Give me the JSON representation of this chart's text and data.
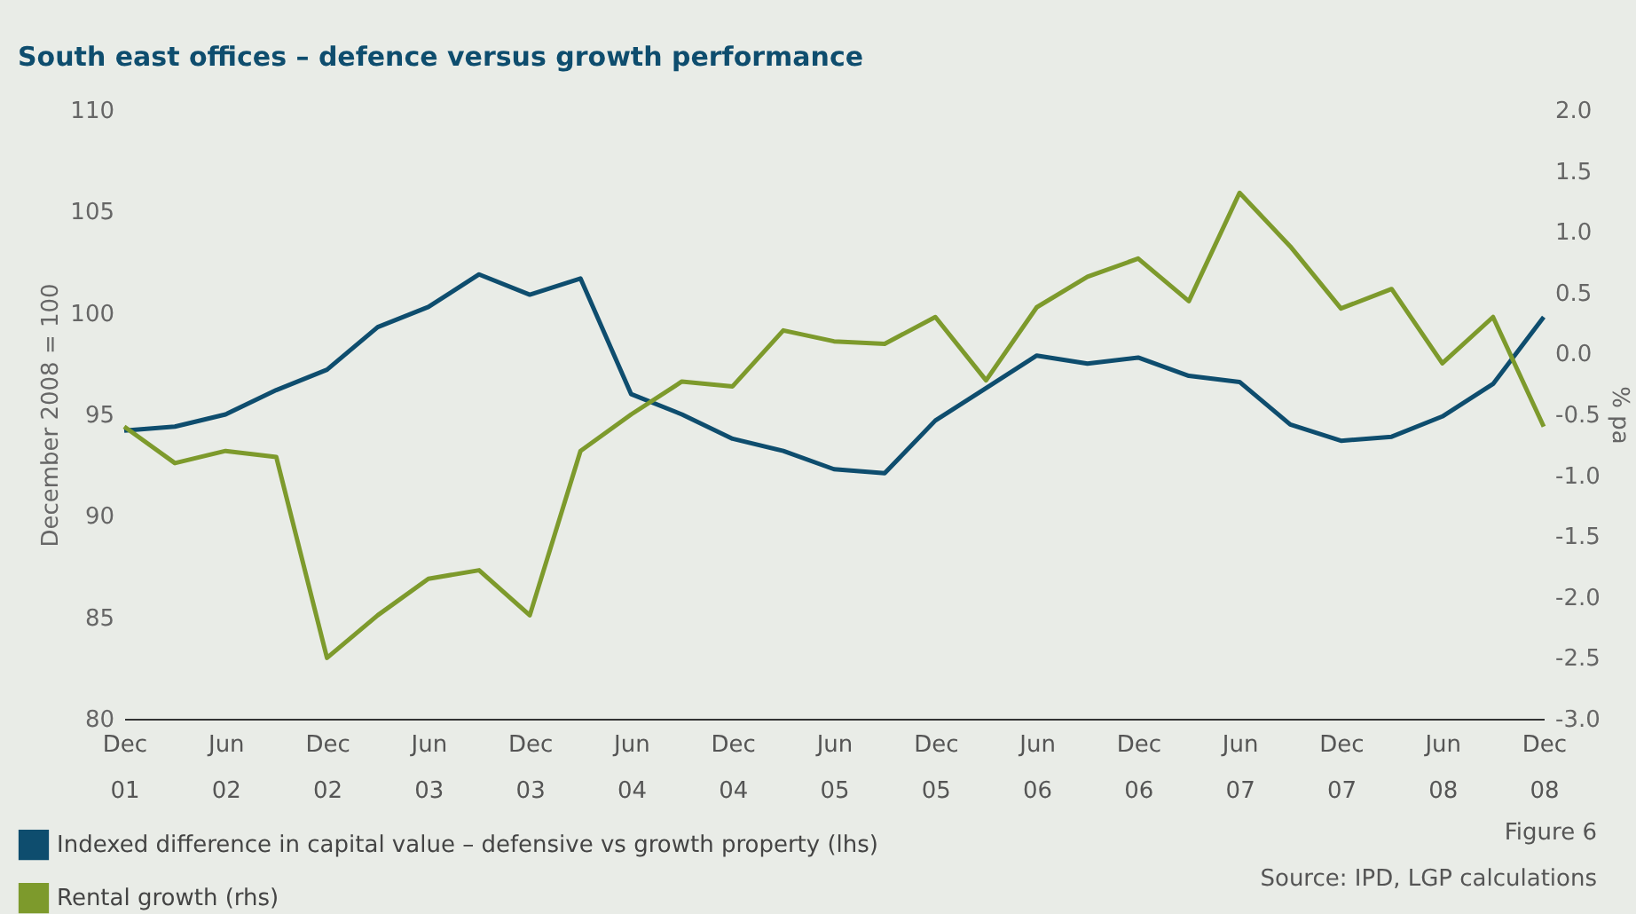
{
  "chart_data": {
    "type": "line",
    "title": "South east offices – defence versus growth performance",
    "ylabel": "December 2008 = 100",
    "y2label": "% pa",
    "categories": [
      "Dec 01",
      null,
      "Jun 02",
      null,
      "Dec 02",
      null,
      "Jun 03",
      null,
      "Dec 03",
      null,
      "Jun 04",
      null,
      "Dec 04",
      null,
      "Jun 05",
      null,
      "Dec 05",
      null,
      "Jun 06",
      null,
      "Dec 06",
      null,
      "Jun 07",
      null,
      "Dec 07",
      null,
      "Jun 08",
      null,
      "Dec 08"
    ],
    "series": [
      {
        "name": "Indexed difference in capital value – defensive vs growth property (lhs)",
        "color": "#0e4d6e",
        "values": [
          94.2,
          94.4,
          95.0,
          96.2,
          97.2,
          99.3,
          100.3,
          101.9,
          100.9,
          101.7,
          96.0,
          95.0,
          93.8,
          93.2,
          92.3,
          92.1,
          94.7,
          96.3,
          97.9,
          97.5,
          97.8,
          96.9,
          96.6,
          94.5,
          93.7,
          93.9,
          94.9,
          96.5,
          99.8
        ]
      },
      {
        "name": "Rental growth (rhs)",
        "color": "#7d9a2c",
        "axis": "y2",
        "values": [
          -0.6,
          -0.9,
          -0.8,
          -0.85,
          -2.5,
          -2.15,
          -1.85,
          -1.78,
          -2.15,
          -0.8,
          -0.5,
          -0.23,
          -0.27,
          0.19,
          0.1,
          0.08,
          0.3,
          -0.22,
          0.38,
          0.63,
          0.78,
          0.43,
          1.32,
          0.88,
          0.37,
          0.53,
          -0.08,
          0.3,
          -0.6
        ]
      }
    ],
    "ylim": [
      80,
      110
    ],
    "yticks": [
      80,
      85,
      90,
      95,
      100,
      105,
      110
    ],
    "y2lim": [
      -3,
      2
    ],
    "y2ticks": [
      {
        "value": -3,
        "label": "-3.0"
      },
      {
        "value": -2.5,
        "label": "-2.5"
      },
      {
        "value": -2,
        "label": "-2.0"
      },
      {
        "value": -1.5,
        "label": "-1.5"
      },
      {
        "value": -1,
        "label": "-1.0"
      },
      {
        "value": -0.5,
        "label": "-0.5"
      },
      {
        "value": 0,
        "label": "0.0"
      },
      {
        "value": 0.5,
        "label": "0.5"
      },
      {
        "value": 1,
        "label": "1.0"
      },
      {
        "value": 1.5,
        "label": "1.5"
      },
      {
        "value": 2,
        "label": "2.0"
      }
    ],
    "grid": false,
    "legend": "bottom",
    "marker": "none",
    "line_style": "solid",
    "annotations": [
      "Figure 6",
      "Source: IPD, LGP calculations"
    ]
  }
}
